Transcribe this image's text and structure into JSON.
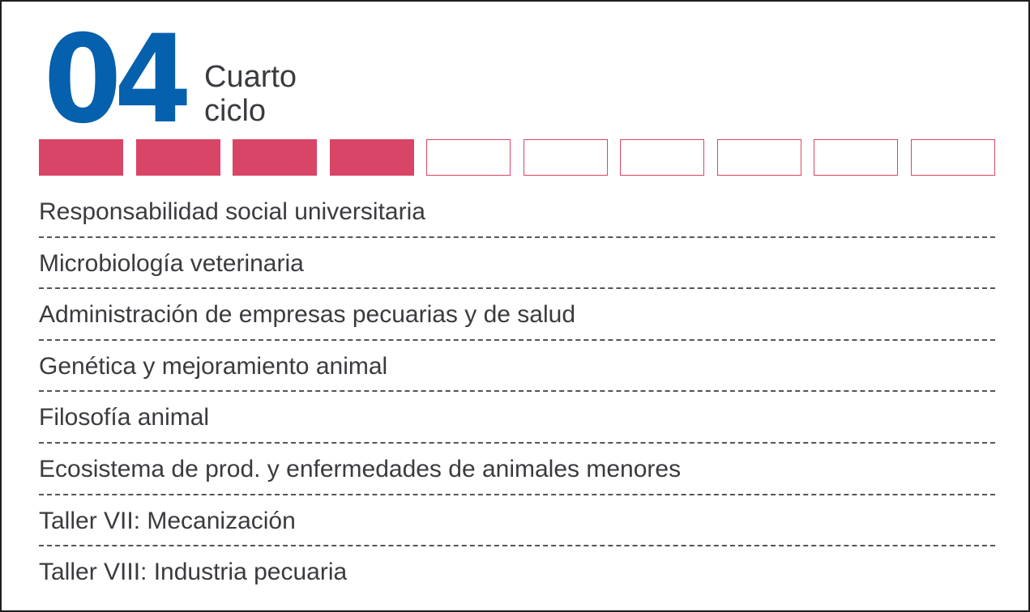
{
  "header": {
    "cycle_number": "04",
    "cycle_label_line1": "Cuarto",
    "cycle_label_line2": "ciclo"
  },
  "progress": {
    "total_segments": 10,
    "completed_segments": 4,
    "fill_color": "#d94566",
    "number_color": "#0560ad"
  },
  "courses": [
    "Responsabilidad social universitaria",
    "Microbiología veterinaria",
    "Administración de empresas pecuarias y de salud",
    "Genética y mejoramiento animal",
    "Filosofía animal",
    "Ecosistema de prod. y enfermedades de animales menores",
    "Taller VII: Mecanización",
    "Taller VIII: Industria pecuaria"
  ]
}
